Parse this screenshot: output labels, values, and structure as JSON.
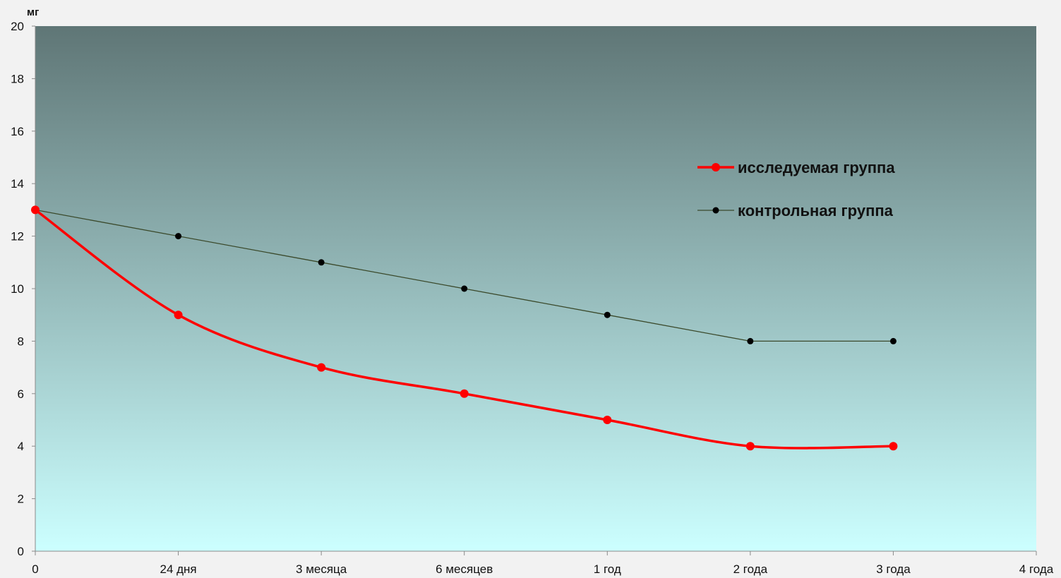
{
  "chart_data": {
    "type": "line",
    "title": "",
    "xlabel": "",
    "ylabel": "мг",
    "ylim": [
      0,
      20
    ],
    "yticks": [
      0,
      2,
      4,
      6,
      8,
      10,
      12,
      14,
      16,
      18,
      20
    ],
    "xlim": [
      0,
      7
    ],
    "x": [
      0,
      1,
      2,
      3,
      4,
      5,
      6
    ],
    "x_tick_labels": [
      "0",
      "24 дня",
      "3 месяца",
      "6 месяцев",
      "1 год",
      "2 года",
      "3 года",
      "4 года"
    ],
    "grid": false,
    "legend_position": "right",
    "series": [
      {
        "name": "исследуемая группа",
        "values": [
          13,
          9,
          7,
          6,
          5,
          4,
          4
        ],
        "color": "#ff0000",
        "smooth": true,
        "marker": "circle"
      },
      {
        "name": "контрольная группа",
        "values": [
          13,
          12,
          11,
          10,
          9,
          8,
          8
        ],
        "color": "#3b4a2c",
        "marker_color": "#000000",
        "smooth": false,
        "marker": "circle"
      }
    ],
    "background_gradient": [
      "#5f7676",
      "#ccffff"
    ]
  }
}
